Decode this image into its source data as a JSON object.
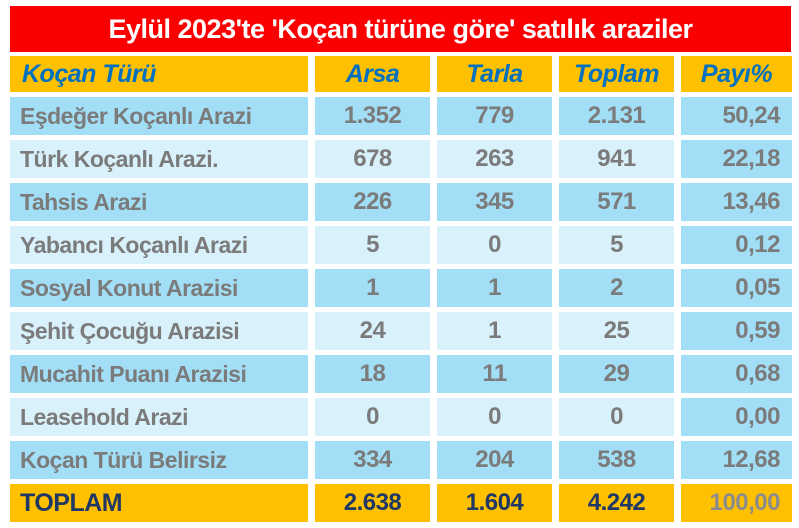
{
  "title": "Eylül 2023'te 'Koçan türüne göre' satılık araziler",
  "colors": {
    "banner_red": "#fb0000",
    "header_gold": "#ffc000",
    "header_text_blue": "#0070c0",
    "row_dark_blue": "#a2dff6",
    "row_light_blue": "#d9f1fb",
    "data_text_gray": "#7b7b7b",
    "footer_text_navy": "#1f3864",
    "footer_payi_gray": "#8c8c8c"
  },
  "table": {
    "headers": {
      "type": "Koçan Türü",
      "arsa": "Arsa",
      "tarla": "Tarla",
      "toplam": "Toplam",
      "payi": "Payı%"
    },
    "rows": [
      {
        "label": "Eşdeğer Koçanlı Arazi",
        "arsa": "1.352",
        "tarla": "779",
        "toplam": "2.131",
        "payi": "50,24"
      },
      {
        "label": "Türk Koçanlı Arazi.",
        "arsa": "678",
        "tarla": "263",
        "toplam": "941",
        "payi": "22,18"
      },
      {
        "label": "Tahsis Arazi",
        "arsa": "226",
        "tarla": "345",
        "toplam": "571",
        "payi": "13,46"
      },
      {
        "label": "Yabancı Koçanlı Arazi",
        "arsa": "5",
        "tarla": "0",
        "toplam": "5",
        "payi": "0,12"
      },
      {
        "label": "Sosyal Konut Arazisi",
        "arsa": "1",
        "tarla": "1",
        "toplam": "2",
        "payi": "0,05"
      },
      {
        "label": "Şehit Çocuğu Arazisi",
        "arsa": "24",
        "tarla": "1",
        "toplam": "25",
        "payi": "0,59"
      },
      {
        "label": "Mucahit Puanı Arazisi",
        "arsa": "18",
        "tarla": "11",
        "toplam": "29",
        "payi": "0,68"
      },
      {
        "label": "Leasehold Arazi",
        "arsa": "0",
        "tarla": "0",
        "toplam": "0",
        "payi": "0,00"
      },
      {
        "label": "Koçan Türü Belirsiz",
        "arsa": "334",
        "tarla": "204",
        "toplam": "538",
        "payi": "12,68"
      }
    ],
    "footer": {
      "label": "TOPLAM",
      "arsa": "2.638",
      "tarla": "1.604",
      "toplam": "4.242",
      "payi": "100,00"
    }
  },
  "chart_data": {
    "type": "table",
    "title": "Eylül 2023'te 'Koçan türüne göre' satılık araziler",
    "columns": [
      "Koçan Türü",
      "Arsa",
      "Tarla",
      "Toplam",
      "Payı%"
    ],
    "rows": [
      [
        "Eşdeğer Koçanlı Arazi",
        1352,
        779,
        2131,
        50.24
      ],
      [
        "Türk Koçanlı Arazi.",
        678,
        263,
        941,
        22.18
      ],
      [
        "Tahsis Arazi",
        226,
        345,
        571,
        13.46
      ],
      [
        "Yabancı Koçanlı Arazi",
        5,
        0,
        5,
        0.12
      ],
      [
        "Sosyal Konut Arazisi",
        1,
        1,
        2,
        0.05
      ],
      [
        "Şehit Çocuğu Arazisi",
        24,
        1,
        25,
        0.59
      ],
      [
        "Mucahit Puanı Arazisi",
        18,
        11,
        29,
        0.68
      ],
      [
        "Leasehold Arazi",
        0,
        0,
        0,
        0.0
      ],
      [
        "Koçan Türü Belirsiz",
        334,
        204,
        538,
        12.68
      ]
    ],
    "totals": [
      "TOPLAM",
      2638,
      1604,
      4242,
      100.0
    ]
  }
}
